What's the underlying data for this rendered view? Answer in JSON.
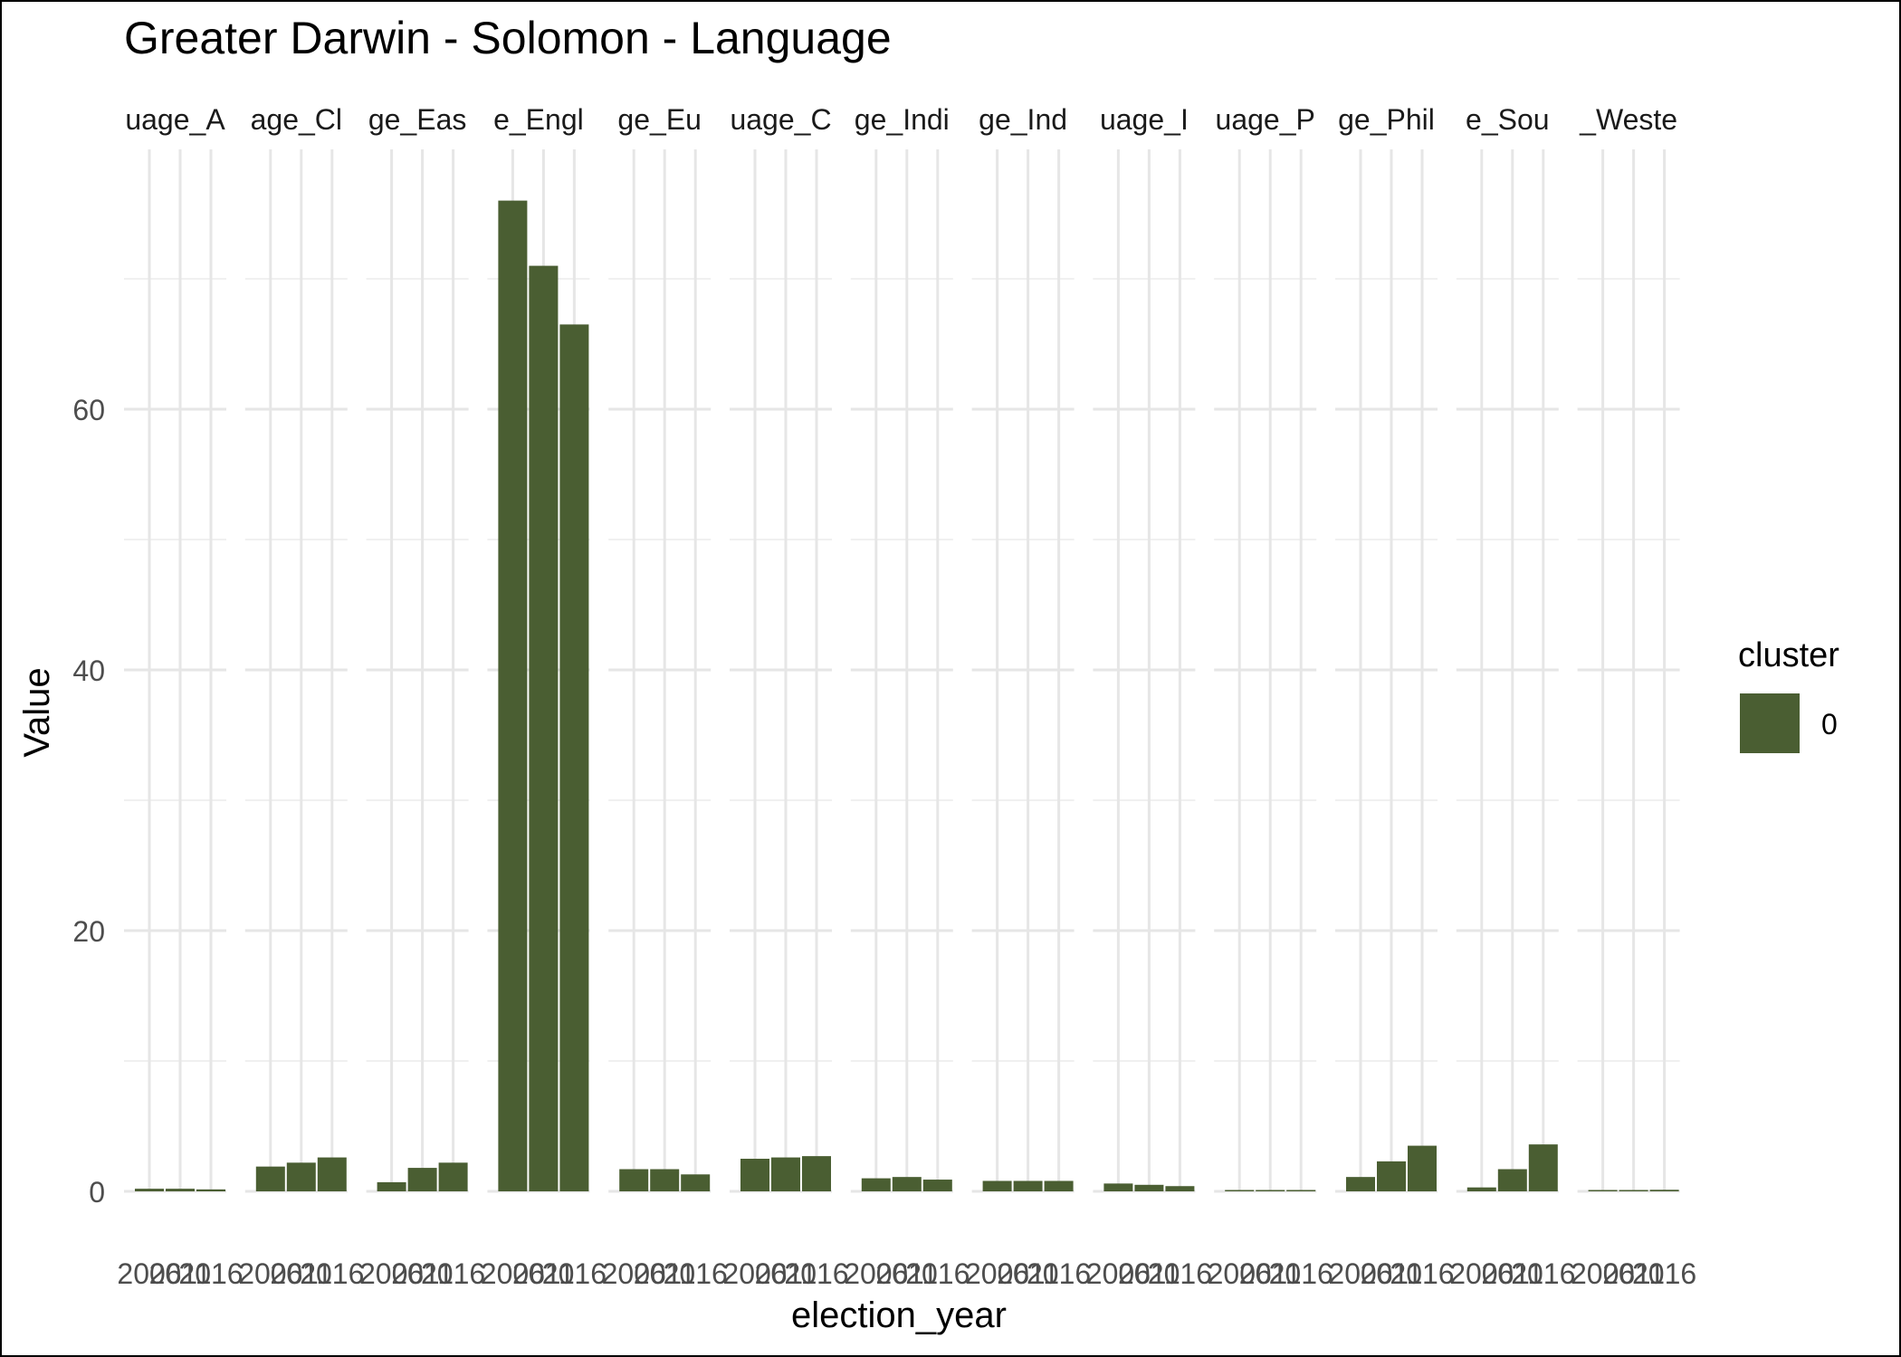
{
  "chart_data": {
    "type": "bar",
    "title": "Greater Darwin - Solomon - Language",
    "xlabel": "election_year",
    "ylabel": "Value",
    "y_ticks": [
      0,
      20,
      40,
      60
    ],
    "ylim": [
      0,
      77
    ],
    "grid": true,
    "years": [
      "2006",
      "2011",
      "2016"
    ],
    "facets": [
      {
        "strip": "uage_A",
        "values": [
          0.2,
          0.2,
          0.15
        ]
      },
      {
        "strip": "age_Cl",
        "values": [
          1.9,
          2.2,
          2.6
        ]
      },
      {
        "strip": "ge_Eas",
        "values": [
          0.7,
          1.8,
          2.2
        ]
      },
      {
        "strip": "e_Engl",
        "values": [
          76.0,
          71.0,
          66.5
        ]
      },
      {
        "strip": "ge_Eu",
        "values": [
          1.7,
          1.7,
          1.3
        ]
      },
      {
        "strip": "uage_C",
        "values": [
          2.5,
          2.6,
          2.7
        ]
      },
      {
        "strip": "ge_Indi",
        "values": [
          1.0,
          1.1,
          0.9
        ]
      },
      {
        "strip": "ge_Ind",
        "values": [
          0.8,
          0.8,
          0.8
        ]
      },
      {
        "strip": "uage_I",
        "values": [
          0.6,
          0.5,
          0.4
        ]
      },
      {
        "strip": "uage_P",
        "values": [
          0.03,
          0.03,
          0.02
        ]
      },
      {
        "strip": "ge_Phil",
        "values": [
          1.1,
          2.3,
          3.5
        ]
      },
      {
        "strip": "e_Sou",
        "values": [
          0.3,
          1.7,
          3.6
        ]
      },
      {
        "strip": "_Weste",
        "values": [
          0.05,
          0.1,
          0.12
        ]
      }
    ],
    "legend": {
      "title": "cluster",
      "position": "right",
      "items": [
        {
          "label": "0",
          "color": "#4a5e32"
        }
      ]
    }
  }
}
